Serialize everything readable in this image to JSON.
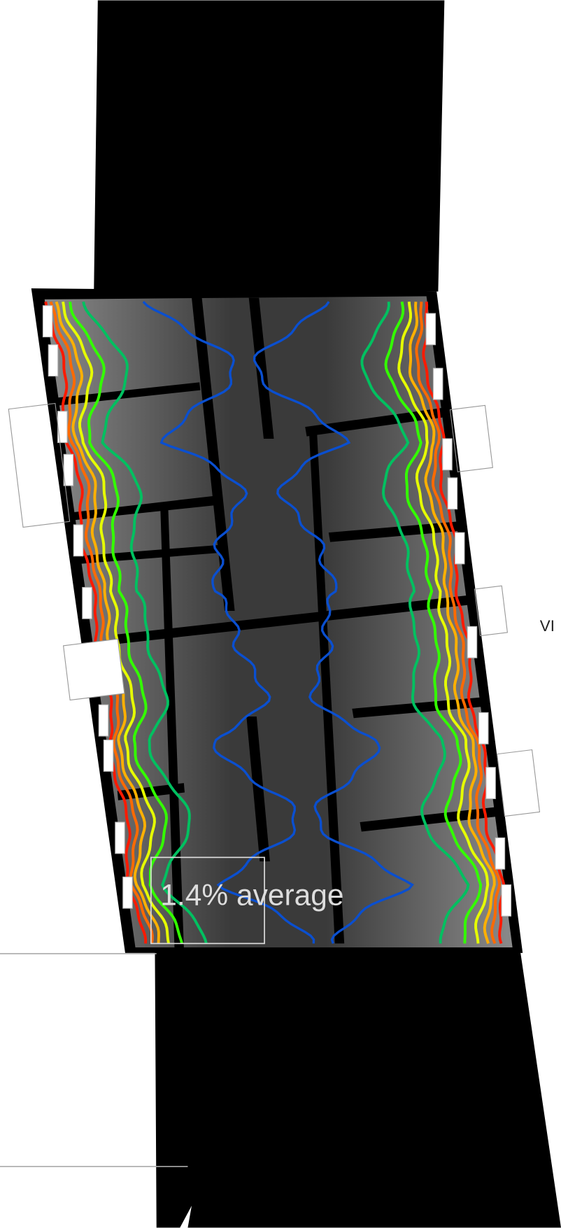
{
  "plan_label": "1.4% average",
  "side_text": "VI"
}
